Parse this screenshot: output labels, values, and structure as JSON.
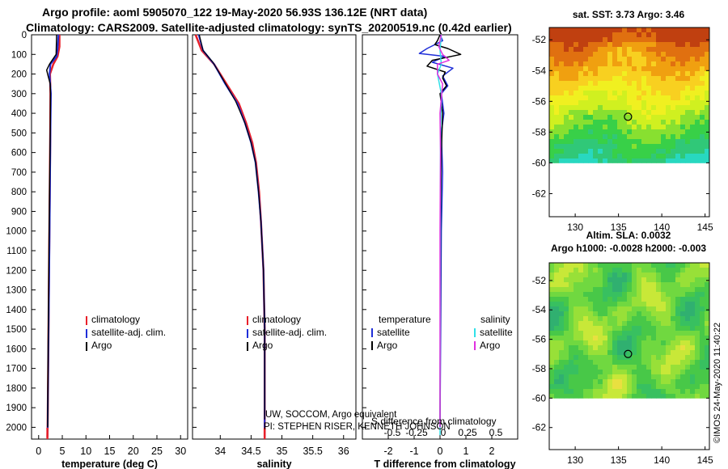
{
  "title": {
    "line1": "Argo profile: aoml 5905070_122 19-May-2020 56.93S 136.12E (NRT data)",
    "line2": "Climatology: CARS2009. Satellite-adjusted climatology: synTS_20200519.nc (0.42d earlier)"
  },
  "stamp": "©IMOS 24-May-2020 11:40:22",
  "colors": {
    "climatology": "#e8202a",
    "satellite": "#1f2ed8",
    "argo": "#000000",
    "sal_satellite": "#30e0e8",
    "sal_argo": "#e030e0"
  },
  "chart_data": [
    {
      "type": "line",
      "name": "temperature",
      "xlabel": "temperature (deg C)",
      "ylabel": "",
      "xlim": [
        -1.5,
        31.5
      ],
      "ylim": [
        2060,
        0
      ],
      "xticks": [
        0,
        5,
        10,
        15,
        20,
        25,
        30
      ],
      "yticks": [
        0,
        100,
        200,
        300,
        400,
        500,
        600,
        700,
        800,
        900,
        1000,
        1100,
        1200,
        1300,
        1400,
        1500,
        1600,
        1700,
        1800,
        1900,
        2000
      ],
      "legend": [
        "climatology",
        "satellite-adj. clim.",
        "Argo"
      ],
      "series": [
        {
          "name": "climatology",
          "color": "#e8202a",
          "width": 2.5,
          "points": [
            [
              4.4,
              0
            ],
            [
              4.4,
              60
            ],
            [
              4.0,
              110
            ],
            [
              3.1,
              150
            ],
            [
              2.4,
              200
            ],
            [
              2.5,
              300
            ],
            [
              2.45,
              500
            ],
            [
              2.35,
              800
            ],
            [
              2.2,
              1200
            ],
            [
              2.05,
              1600
            ],
            [
              1.9,
              2000
            ],
            [
              1.85,
              2050
            ]
          ]
        },
        {
          "name": "satellite-adj. clim.",
          "color": "#1f2ed8",
          "width": 2,
          "points": [
            [
              4.2,
              0
            ],
            [
              4.0,
              70
            ],
            [
              3.8,
              110
            ],
            [
              2.5,
              150
            ],
            [
              2.3,
              200
            ],
            [
              2.6,
              300
            ],
            [
              2.5,
              500
            ],
            [
              2.4,
              800
            ],
            [
              2.25,
              1200
            ],
            [
              2.05,
              1600
            ],
            [
              1.9,
              2000
            ],
            [
              1.85,
              2050
            ]
          ]
        },
        {
          "name": "Argo",
          "color": "#000000",
          "width": 1.5,
          "points": [
            [
              3.8,
              0
            ],
            [
              3.7,
              100
            ],
            [
              3.0,
              125
            ],
            [
              2.3,
              150
            ],
            [
              1.7,
              180
            ],
            [
              2.0,
              210
            ],
            [
              2.45,
              250
            ],
            [
              2.5,
              300
            ],
            [
              2.45,
              500
            ],
            [
              2.3,
              800
            ],
            [
              2.15,
              1200
            ],
            [
              2.0,
              1600
            ],
            [
              1.9,
              2000
            ]
          ]
        }
      ]
    },
    {
      "type": "line",
      "name": "salinity",
      "xlabel": "salinity",
      "ylabel": "",
      "xlim": [
        33.55,
        36.2
      ],
      "ylim": [
        2060,
        0
      ],
      "xticks": [
        34,
        34.5,
        35,
        35.5,
        36
      ],
      "legend": [
        "climatology",
        "satellite-adj. clim.",
        "Argo"
      ],
      "note_line1": "UW, SOCCOM, Argo equivalent",
      "note_line2": "PI: STEPHEN RISER, KENNETH JOHNSON",
      "series": [
        {
          "name": "climatology",
          "color": "#e8202a",
          "width": 2.5,
          "points": [
            [
              33.6,
              0
            ],
            [
              33.7,
              80
            ],
            [
              33.9,
              150
            ],
            [
              34.1,
              250
            ],
            [
              34.3,
              350
            ],
            [
              34.42,
              450
            ],
            [
              34.52,
              550
            ],
            [
              34.58,
              650
            ],
            [
              34.63,
              800
            ],
            [
              34.66,
              950
            ],
            [
              34.7,
              1200
            ],
            [
              34.72,
              1500
            ],
            [
              34.72,
              1800
            ],
            [
              34.72,
              2050
            ]
          ]
        },
        {
          "name": "satellite-adj. clim.",
          "color": "#1f2ed8",
          "width": 2,
          "points": [
            [
              33.65,
              0
            ],
            [
              33.72,
              80
            ],
            [
              33.9,
              150
            ],
            [
              34.08,
              250
            ],
            [
              34.28,
              350
            ],
            [
              34.4,
              450
            ],
            [
              34.5,
              550
            ],
            [
              34.57,
              650
            ],
            [
              34.62,
              800
            ],
            [
              34.66,
              950
            ],
            [
              34.7,
              1200
            ],
            [
              34.72,
              1500
            ],
            [
              34.72,
              1800
            ],
            [
              34.72,
              2050
            ]
          ]
        },
        {
          "name": "Argo",
          "color": "#000000",
          "width": 1.2,
          "points": [
            [
              33.66,
              0
            ],
            [
              33.72,
              80
            ],
            [
              33.88,
              140
            ],
            [
              34.05,
              230
            ],
            [
              34.25,
              340
            ],
            [
              34.4,
              450
            ],
            [
              34.5,
              550
            ],
            [
              34.57,
              650
            ],
            [
              34.62,
              800
            ],
            [
              34.66,
              950
            ],
            [
              34.7,
              1200
            ],
            [
              34.72,
              1500
            ],
            [
              34.72,
              1800
            ],
            [
              34.72,
              1960
            ]
          ]
        }
      ]
    },
    {
      "type": "line",
      "name": "difference from climatology",
      "xlabel": "T difference from climatology",
      "xlabel_top": "S difference from climatology",
      "xlim": [
        -3,
        3
      ],
      "ylim": [
        2060,
        0
      ],
      "xticks": [
        -2,
        -1,
        0,
        1,
        2
      ],
      "xticks_s": [
        -0.5,
        -0.25,
        0,
        0.25,
        0.5
      ],
      "legend": [
        "temperature",
        "satellite",
        "Argo",
        "salinity",
        "satellite",
        "Argo"
      ],
      "series": [
        {
          "name": "T satellite",
          "color": "#1f2ed8",
          "width": 1.5,
          "points": [
            [
              0,
              0
            ],
            [
              0.1,
              30
            ],
            [
              -0.5,
              70
            ],
            [
              -0.8,
              95
            ],
            [
              0.2,
              110
            ],
            [
              -0.3,
              140
            ],
            [
              0.5,
              170
            ],
            [
              0.1,
              210
            ],
            [
              0.3,
              260
            ],
            [
              0.05,
              300
            ],
            [
              0.15,
              400
            ],
            [
              0.05,
              500
            ],
            [
              0.1,
              700
            ],
            [
              0.05,
              1000
            ],
            [
              0,
              2000
            ]
          ]
        },
        {
          "name": "T Argo",
          "color": "#000000",
          "width": 1.5,
          "points": [
            [
              0,
              0
            ],
            [
              -0.1,
              30
            ],
            [
              -0.2,
              50
            ],
            [
              0.3,
              70
            ],
            [
              0.8,
              100
            ],
            [
              -0.3,
              130
            ],
            [
              -0.5,
              160
            ],
            [
              0.2,
              190
            ],
            [
              0.1,
              220
            ],
            [
              0.25,
              260
            ],
            [
              0,
              300
            ],
            [
              0.1,
              400
            ],
            [
              0.05,
              600
            ],
            [
              0.02,
              1000
            ],
            [
              0,
              2000
            ]
          ]
        },
        {
          "name": "S satellite",
          "color": "#30e0e8",
          "width": 1.5,
          "points": [
            [
              0.05,
              0
            ],
            [
              0,
              80
            ],
            [
              0.05,
              150
            ],
            [
              -0.1,
              200
            ],
            [
              0.05,
              300
            ],
            [
              0.02,
              500
            ],
            [
              0,
              2040
            ]
          ]
        },
        {
          "name": "S Argo",
          "color": "#e030e0",
          "width": 1.5,
          "points": [
            [
              0.05,
              0
            ],
            [
              -0.05,
              60
            ],
            [
              0.1,
              100
            ],
            [
              0.35,
              130
            ],
            [
              -0.1,
              150
            ],
            [
              -0.1,
              200
            ],
            [
              0.1,
              250
            ],
            [
              0.03,
              350
            ],
            [
              0,
              400
            ],
            [
              0.02,
              600
            ],
            [
              0,
              1000
            ],
            [
              0,
              2000
            ]
          ]
        }
      ]
    },
    {
      "type": "heatmap",
      "name": "sat-sst-map",
      "title": "sat. SST: 3.73 Argo: 3.46",
      "xlim": [
        127,
        145.5
      ],
      "ylim": [
        -63.5,
        -51.2
      ],
      "xticks": [
        130,
        135,
        140,
        145
      ],
      "yticks": [
        -52,
        -54,
        -56,
        -58,
        -60,
        -62
      ],
      "data_edge_lat": -60,
      "marker_lon": 136.1,
      "marker_lat": -57,
      "palette": [
        "#28d8c0",
        "#30c878",
        "#38d048",
        "#88e030",
        "#d0f020",
        "#f0f020",
        "#f8d020",
        "#f0a010",
        "#e07010",
        "#c04010"
      ]
    },
    {
      "type": "heatmap",
      "name": "altim-sla-map",
      "title_line1": "Altim. SLA: 0.0032",
      "title_line2": "Argo h1000: -0.0028 h2000: -0.003",
      "xlim": [
        127,
        145.5
      ],
      "ylim": [
        -63.5,
        -50.8
      ],
      "xticks": [
        130,
        135,
        140,
        145
      ],
      "yticks": [
        -52,
        -54,
        -56,
        -58,
        -60,
        -62
      ],
      "data_edge_lat": -60,
      "marker_lon": 136.1,
      "marker_lat": -57,
      "palette": [
        "#30b070",
        "#38c060",
        "#48c848",
        "#70d840",
        "#98e038",
        "#c8e838",
        "#e8e040",
        "#f0c040"
      ]
    }
  ]
}
